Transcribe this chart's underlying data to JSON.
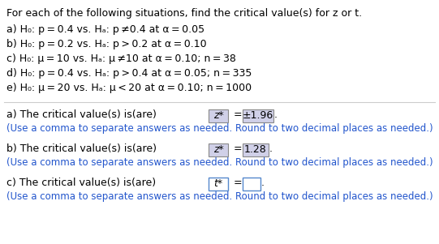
{
  "title": "For each of the following situations, find the critical value(s) for z or t.",
  "prob_a": "a) H₀: p = 0.4 vs. Hₐ: p ≠0.4 at α = 0.05",
  "prob_b": "b) H₀: p = 0.2 vs. Hₐ: p > 0.2 at α = 0.10",
  "prob_c": "c) H₀: μ = 10 vs. Hₐ: μ ≠10 at α = 0.10; n = 38",
  "prob_d": "d) H₀: p = 0.4 vs. Hₐ: p > 0.4 at α = 0.05; n = 335",
  "prob_e": "e) H₀: μ = 20 vs. Hₐ: μ < 20 at α = 0.10; n = 1000",
  "ans_a_pre": "a) The critical value(s) is(are)",
  "ans_a_var": "z*",
  "ans_a_val": "±1.96",
  "ans_b_pre": "b) The critical value(s) is(are)",
  "ans_b_var": "z*",
  "ans_b_val": "1.28",
  "ans_c_pre": "c) The critical value(s) is(are)",
  "ans_c_var": "t*",
  "ans_c_val": "",
  "note": "(Use a comma to separate answers as needed. Round to two decimal places as needed.)",
  "bg": "#ffffff",
  "black": "#000000",
  "blue": "#2255cc",
  "box_filled": "#d0d0e8",
  "box_empty_edge": "#5588cc",
  "divider_color": "#cccccc",
  "fs_main": 9.0,
  "fs_note": 8.5
}
